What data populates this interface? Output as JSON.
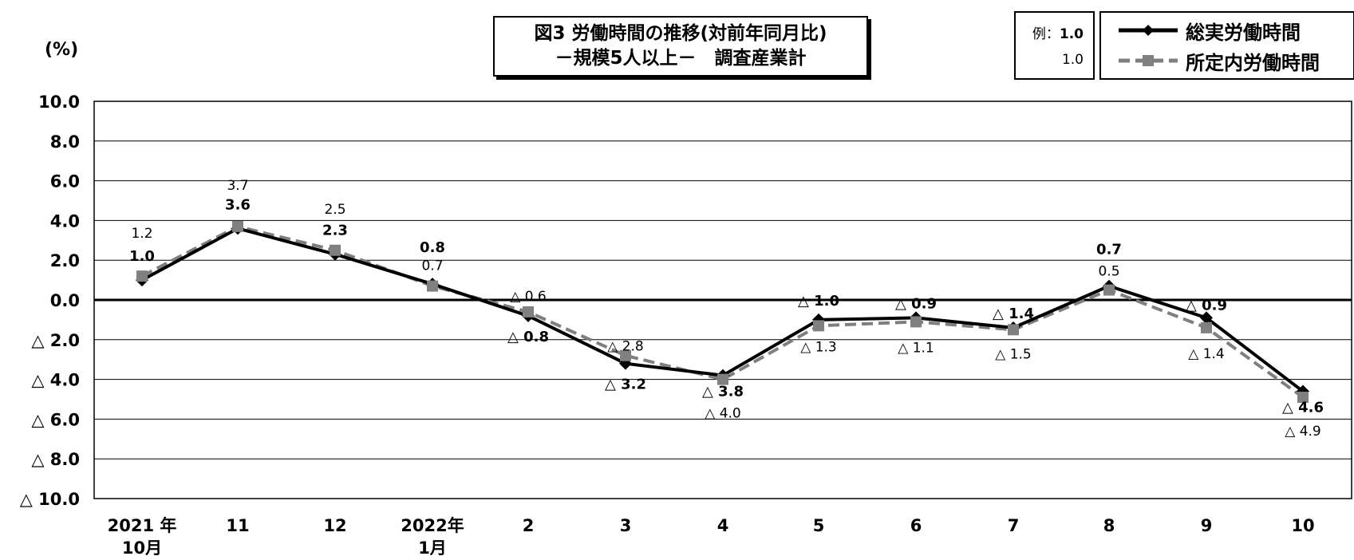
{
  "title": {
    "line1": "図3 労働時間の推移(対前年同月比)",
    "line2": "－規模5人以上－　調査産業計"
  },
  "unit_label": "(%)",
  "example": {
    "bold_label": "例：",
    "bold_value": "1.0",
    "plain_value": "1.0"
  },
  "legend": {
    "series1": "総実労働時間",
    "series2": "所定内労働時間"
  },
  "colors": {
    "series1": "#000000",
    "series2": "#7f7f7f",
    "marker2": "#808080"
  },
  "chart_data": {
    "type": "line",
    "title": "図3 労働時間の推移(対前年同月比) －規模5人以上－ 調査産業計",
    "ylabel": "(%)",
    "ylim": [
      -10,
      10
    ],
    "yticks": [
      10,
      8,
      6,
      4,
      2,
      0,
      -2,
      -4,
      -6,
      -8,
      -10
    ],
    "ytick_labels": [
      "10.0",
      "8.0",
      "6.0",
      "4.0",
      "2.0",
      "0.0",
      "△ 2.0",
      "△ 4.0",
      "△ 6.0",
      "△ 8.0",
      "△ 10.0"
    ],
    "categories": [
      [
        "2021 年",
        "10月"
      ],
      [
        "11"
      ],
      [
        "12"
      ],
      [
        "2022年",
        "1月"
      ],
      [
        "2"
      ],
      [
        "3"
      ],
      [
        "4"
      ],
      [
        "5"
      ],
      [
        "6"
      ],
      [
        "7"
      ],
      [
        "8"
      ],
      [
        "9"
      ],
      [
        "10"
      ]
    ],
    "grid": true,
    "legend_position": "top-right",
    "series": [
      {
        "name": "総実労働時間",
        "values": [
          1.0,
          3.6,
          2.3,
          0.8,
          -0.8,
          -3.2,
          -3.8,
          -1.0,
          -0.9,
          -1.4,
          0.7,
          -0.9,
          -4.6
        ],
        "labels": [
          "1.0",
          "3.6",
          "2.3",
          "0.8",
          "△ 0.8",
          "△ 3.2",
          "△ 3.8",
          "△ 1.0",
          "△ 0.9",
          "△ 1.4",
          "0.7",
          "△ 0.9",
          "△ 4.6"
        ]
      },
      {
        "name": "所定内労働時間",
        "values": [
          1.2,
          3.7,
          2.5,
          0.7,
          -0.6,
          -2.8,
          -4.0,
          -1.3,
          -1.1,
          -1.5,
          0.5,
          -1.4,
          -4.9
        ],
        "labels": [
          "1.2",
          "3.7",
          "2.5",
          "0.7",
          "△ 0.6",
          "△ 2.8",
          "△ 4.0",
          "△ 1.3",
          "△ 1.1",
          "△ 1.5",
          "0.5",
          "△ 1.4",
          "△ 4.9"
        ]
      }
    ]
  }
}
